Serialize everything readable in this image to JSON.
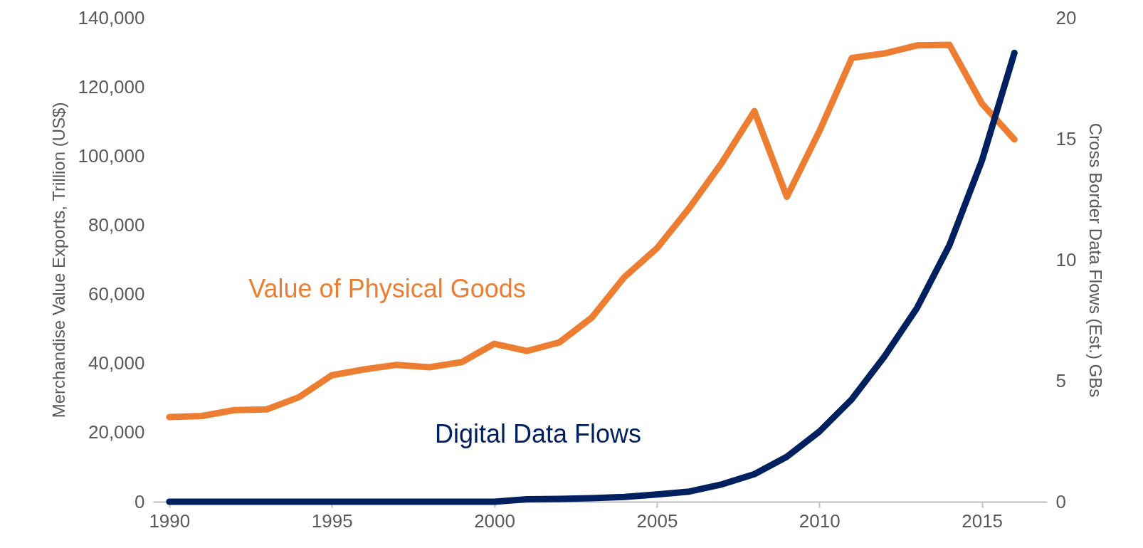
{
  "chart_data": {
    "type": "line",
    "ylabel": "Merchandise Value Exports, Trillion (US$)",
    "y2label": "Cross Border Data Flows (Est.) GBs",
    "x": [
      1990,
      1991,
      1992,
      1993,
      1994,
      1995,
      1996,
      1997,
      1998,
      1999,
      2000,
      2001,
      2002,
      2003,
      2004,
      2005,
      2006,
      2007,
      2008,
      2009,
      2010,
      2011,
      2012,
      2013,
      2014,
      2015,
      2016
    ],
    "series": [
      {
        "name": "Value of Physical Goods",
        "color": "#ed7d31",
        "values": [
          24500,
          24800,
          26500,
          26700,
          30300,
          36600,
          38300,
          39600,
          38900,
          40400,
          45700,
          43600,
          46100,
          53300,
          65000,
          73300,
          85000,
          98100,
          113000,
          88200,
          107200,
          128400,
          129700,
          132000,
          132200,
          115200,
          104800
        ]
      },
      {
        "name": "Digital Data Flows",
        "color": "#002060",
        "axis": "y2",
        "values": [
          0,
          0,
          0,
          0,
          0,
          0,
          0,
          0,
          0,
          0,
          0,
          0.1,
          0.12,
          0.15,
          0.2,
          0.3,
          0.42,
          0.72,
          1.14,
          1.86,
          2.9,
          4.24,
          6.0,
          8.0,
          10.6,
          14.1,
          18.55
        ]
      }
    ],
    "xlim": [
      1989.5,
      2017
    ],
    "xticks": [
      1990,
      1995,
      2000,
      2005,
      2010,
      2015
    ],
    "ylim": [
      0,
      140000
    ],
    "yticks": [
      0,
      {
        "value": 20000,
        "label": "20,000"
      },
      {
        "value": 40000,
        "label": "40,000"
      },
      {
        "value": 60000,
        "label": "60,000"
      },
      {
        "value": 80000,
        "label": "80,000"
      },
      {
        "value": 100000,
        "label": "100,000"
      },
      {
        "value": 120000,
        "label": "120,000"
      },
      {
        "value": 140000,
        "label": "140,000"
      }
    ],
    "y2lim": [
      0,
      20
    ],
    "y2ticks": [
      0,
      5,
      10,
      15,
      20
    ],
    "grid": false,
    "line_style": "solid"
  }
}
